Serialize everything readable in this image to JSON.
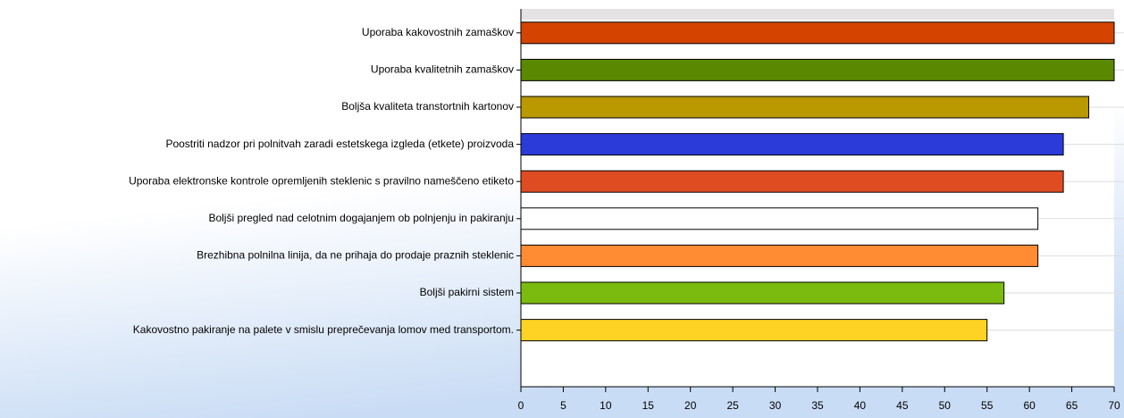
{
  "chart_data": {
    "type": "bar",
    "orientation": "horizontal",
    "categories": [
      "Uporaba kakovostnih zamaškov",
      "Uporaba kvalitetnih zamaškov",
      "Boljša kvaliteta transtortnih kartonov",
      "Poostriti nadzor pri polnitvah zaradi estetskega izgleda (etkete) proizvoda",
      "Uporaba elektronske kontrole opremljenih steklenic s pravilno nameščeno etiketo",
      "Boljši pregled nad celotnim dogajanjem ob polnjenju in pakiranju",
      "Brezhibna polnilna linija, da ne prihaja do prodaje praznih steklenic",
      "Boljši pakirni sistem",
      "Kakovostno pakiranje na palete v smislu preprečevanja lomov med transportom."
    ],
    "values": [
      70,
      70,
      67,
      64,
      64,
      61,
      61,
      57,
      55
    ],
    "colors": [
      "#d44400",
      "#5a8800",
      "#b99800",
      "#2b3bd9",
      "#e04c22",
      "#ffffff",
      "#ff8b33",
      "#7bbb10",
      "#ffd323"
    ],
    "xlim": [
      0,
      70
    ],
    "xticks": [
      0,
      5,
      10,
      15,
      20,
      25,
      30,
      35,
      40,
      45,
      50,
      55,
      60,
      65,
      70
    ]
  }
}
